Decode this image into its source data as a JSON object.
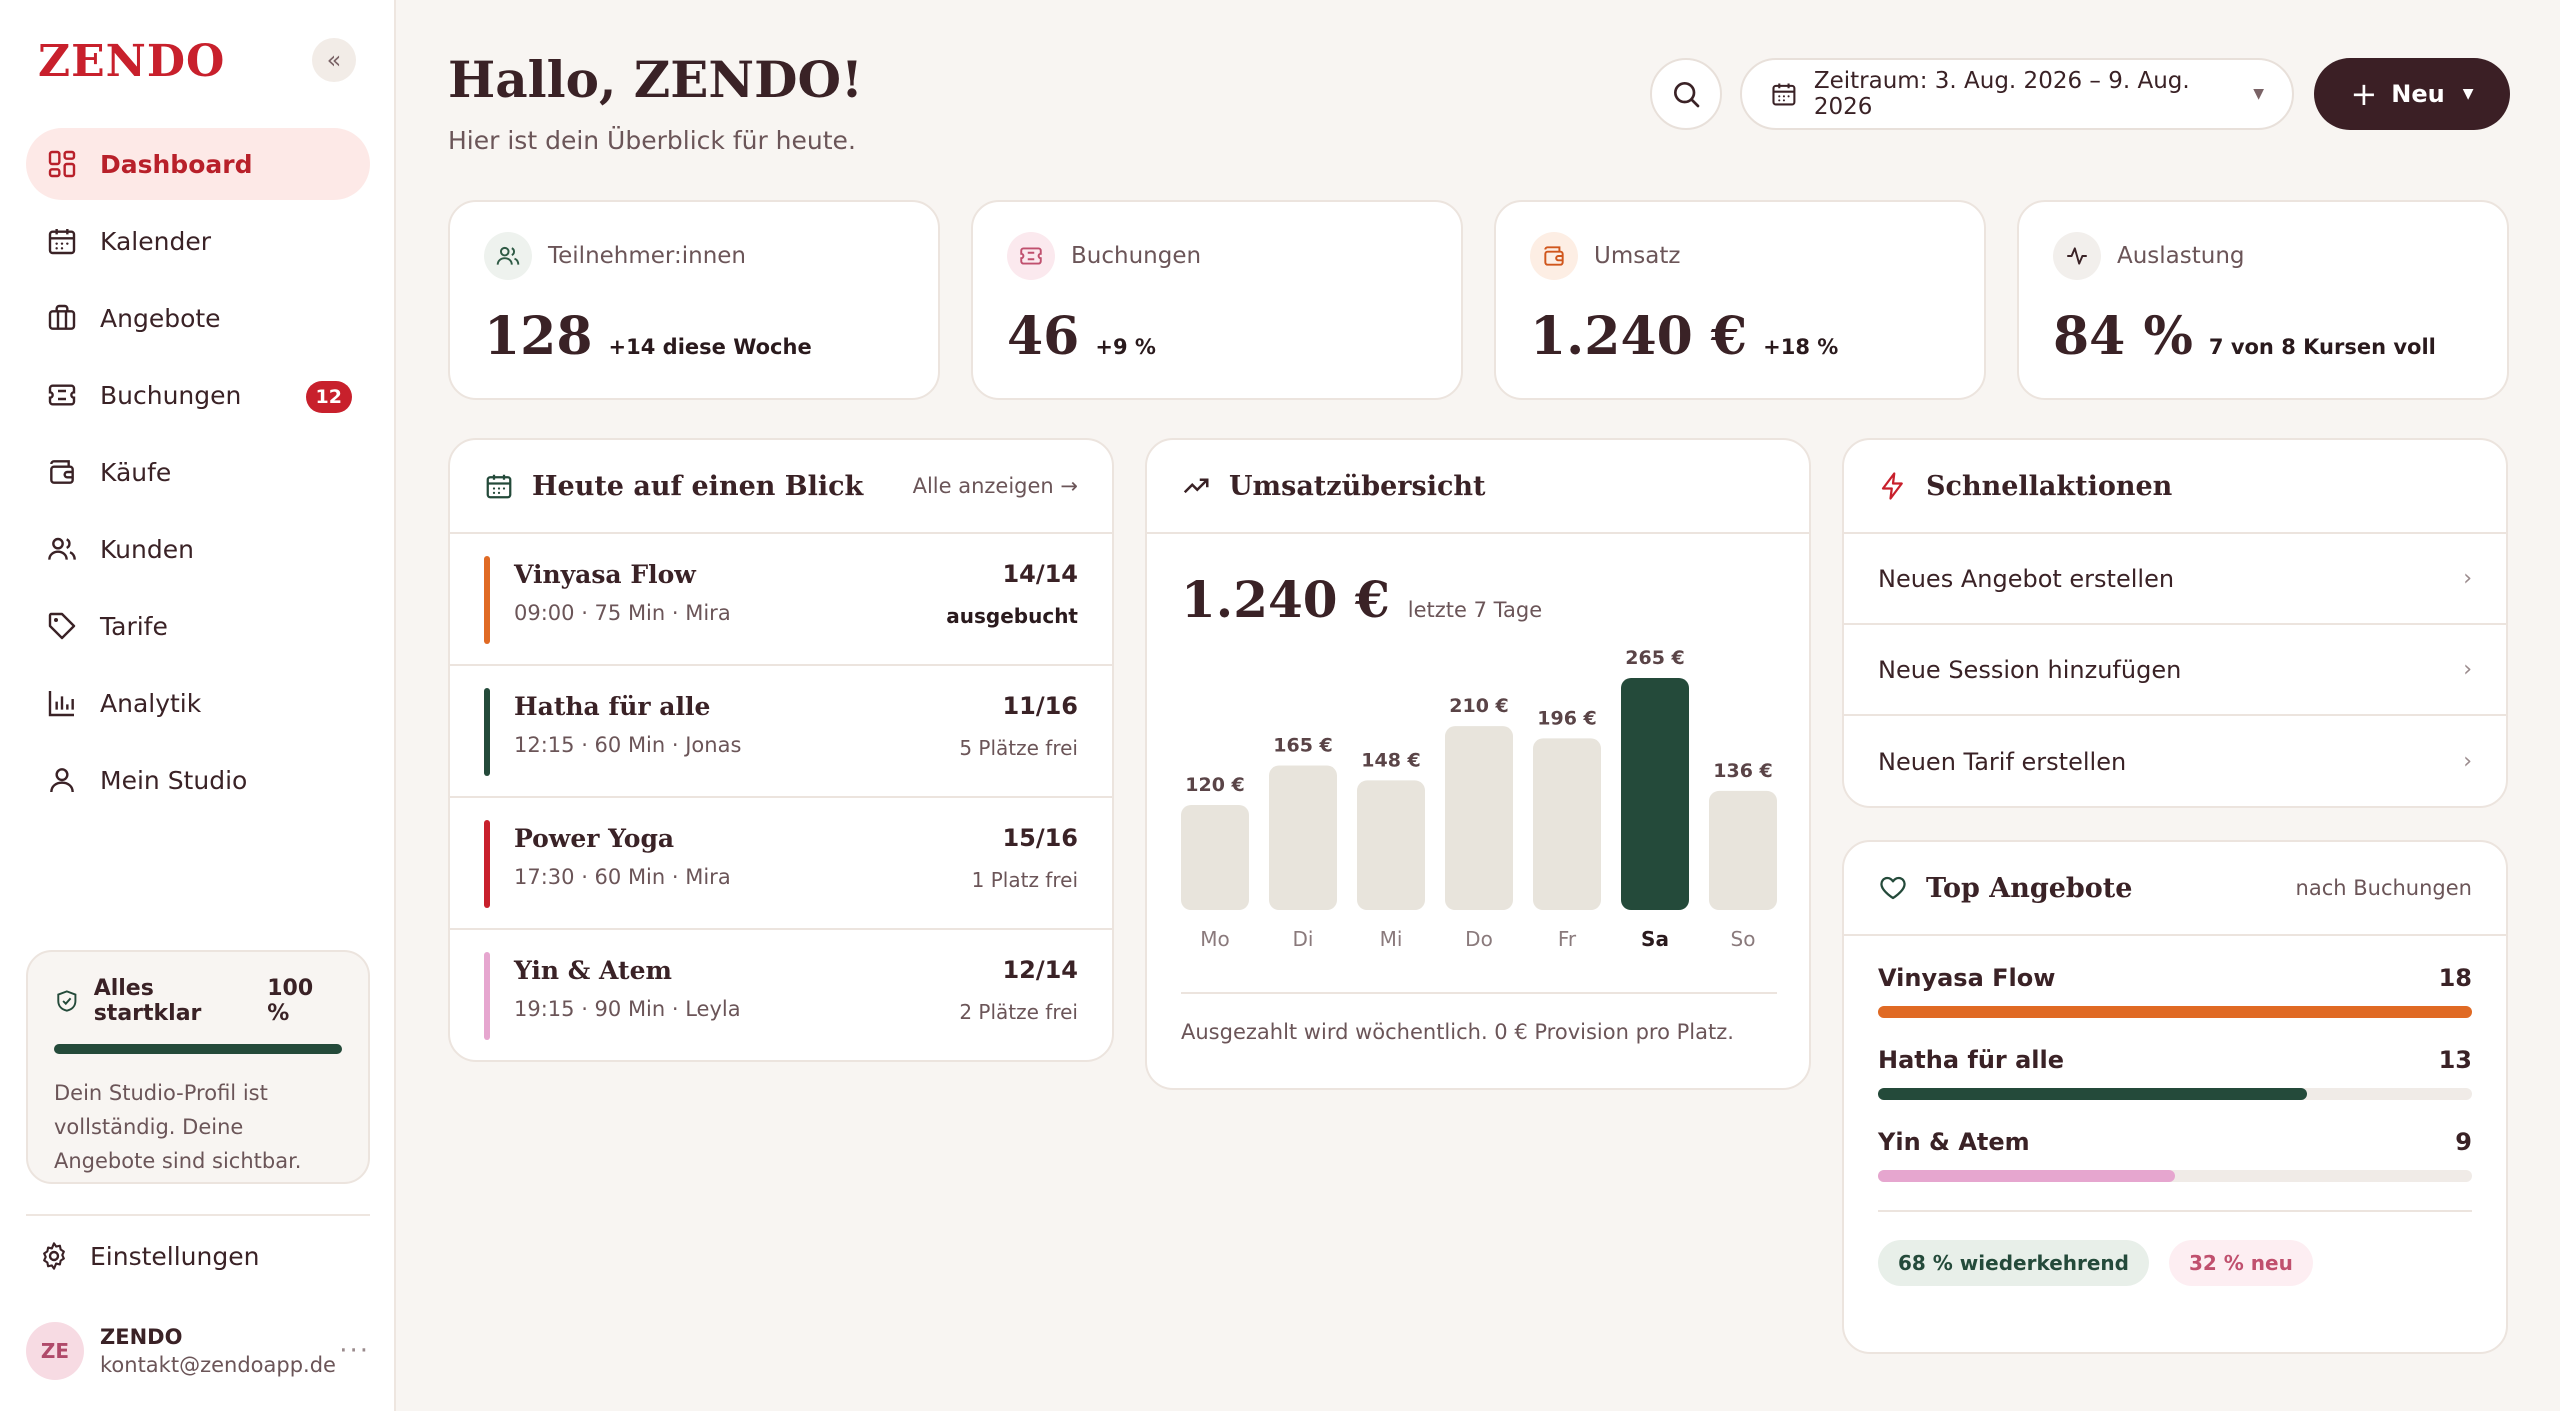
{
  "brand": {
    "logo": "ZENDO"
  },
  "nav": [
    {
      "label": "Dashboard",
      "icon": "dashboard-icon",
      "active": true
    },
    {
      "label": "Kalender",
      "icon": "calendar-icon"
    },
    {
      "label": "Angebote",
      "icon": "briefcase-icon"
    },
    {
      "label": "Buchungen",
      "icon": "ticket-icon",
      "badge": "12"
    },
    {
      "label": "Käufe",
      "icon": "wallet-icon"
    },
    {
      "label": "Kunden",
      "icon": "users-icon"
    },
    {
      "label": "Tarife",
      "icon": "tag-icon"
    },
    {
      "label": "Analytik",
      "icon": "bar-chart-icon"
    },
    {
      "label": "Mein Studio",
      "icon": "user-icon"
    }
  ],
  "ready": {
    "title": "Alles startklar",
    "percent_label": "100 %",
    "percent": 100,
    "text": "Dein Studio-Profil ist vollständig. Deine Angebote sind sichtbar."
  },
  "settings_label": "Einstellungen",
  "user": {
    "initials": "ZE",
    "name": "ZENDO",
    "email": "kontakt@zendoapp.de",
    "more": "···"
  },
  "header": {
    "greeting": "Hallo, ZENDO!",
    "subtitle": "Hier ist dein Überblick für heute.",
    "date_range": "Zeitraum: 3. Aug. 2026 – 9. Aug. 2026",
    "new_label": "Neu"
  },
  "stats": [
    {
      "label": "Teilnehmer:innen",
      "value": "128",
      "delta": "+14 diese Woche",
      "icon": "users-icon",
      "tint": "#eef2ee",
      "color": "#2f5a45"
    },
    {
      "label": "Buchungen",
      "value": "46",
      "delta": "+9 %",
      "icon": "ticket-icon",
      "tint": "#fbe9ee",
      "color": "#c0506e"
    },
    {
      "label": "Umsatz",
      "value": "1.240 €",
      "delta": "+18 %",
      "icon": "wallet-icon",
      "tint": "#fdeee4",
      "color": "#d0561c"
    },
    {
      "label": "Auslastung",
      "value": "84 %",
      "delta": "7 von 8 Kursen voll",
      "icon": "activity-icon",
      "tint": "#f2efec",
      "color": "#3a2226"
    }
  ],
  "today": {
    "title": "Heute auf einen Blick",
    "link": "Alle anzeigen →",
    "sessions": [
      {
        "title": "Vinyasa Flow",
        "meta": "09:00 · 75 Min · Mira",
        "capacity": "14/14",
        "status": "ausgebucht",
        "full": true,
        "color": "#e06a24"
      },
      {
        "title": "Hatha für alle",
        "meta": "12:15 · 60 Min · Jonas",
        "capacity": "11/16",
        "status": "5 Plätze frei",
        "color": "#244a3a"
      },
      {
        "title": "Power Yoga",
        "meta": "17:30 · 60 Min · Mira",
        "capacity": "15/16",
        "status": "1 Platz frei",
        "color": "#c8202c"
      },
      {
        "title": "Yin & Atem",
        "meta": "19:15 · 90 Min · Leyla",
        "capacity": "12/14",
        "status": "2 Plätze frei",
        "color": "#e6a6cf"
      }
    ]
  },
  "revenue": {
    "title": "Umsatzübersicht",
    "total": "1.240 €",
    "total_sub": "letzte 7 Tage",
    "note": "Ausgezahlt wird wöchentlich. 0 € Provision pro Platz."
  },
  "chart_data": {
    "type": "bar",
    "categories": [
      "Mo",
      "Di",
      "Mi",
      "Do",
      "Fr",
      "Sa",
      "So"
    ],
    "values": [
      120,
      165,
      148,
      210,
      196,
      265,
      136
    ],
    "value_labels": [
      "120 €",
      "165 €",
      "148 €",
      "210 €",
      "196 €",
      "265 €",
      "136 €"
    ],
    "highlight": "Sa",
    "ylim": [
      0,
      265
    ],
    "bar_color": "#e8e4dc",
    "highlight_color": "#244a3a"
  },
  "quick": {
    "title": "Schnellaktionen",
    "items": [
      "Neues Angebot erstellen",
      "Neue Session hinzufügen",
      "Neuen Tarif erstellen"
    ]
  },
  "top": {
    "title": "Top Angebote",
    "aside": "nach Buchungen",
    "items": [
      {
        "name": "Vinyasa Flow",
        "count": 18,
        "color": "#e06a24"
      },
      {
        "name": "Hatha für alle",
        "count": 13,
        "color": "#244a3a"
      },
      {
        "name": "Yin & Atem",
        "count": 9,
        "color": "#e6a6cf"
      }
    ],
    "max": 18,
    "pills": [
      {
        "label": "68 % wiederkehrend",
        "bg": "#e8efe9",
        "fg": "#244a3a"
      },
      {
        "label": "32 % neu",
        "bg": "#fdeef2",
        "fg": "#c0506e"
      }
    ]
  }
}
